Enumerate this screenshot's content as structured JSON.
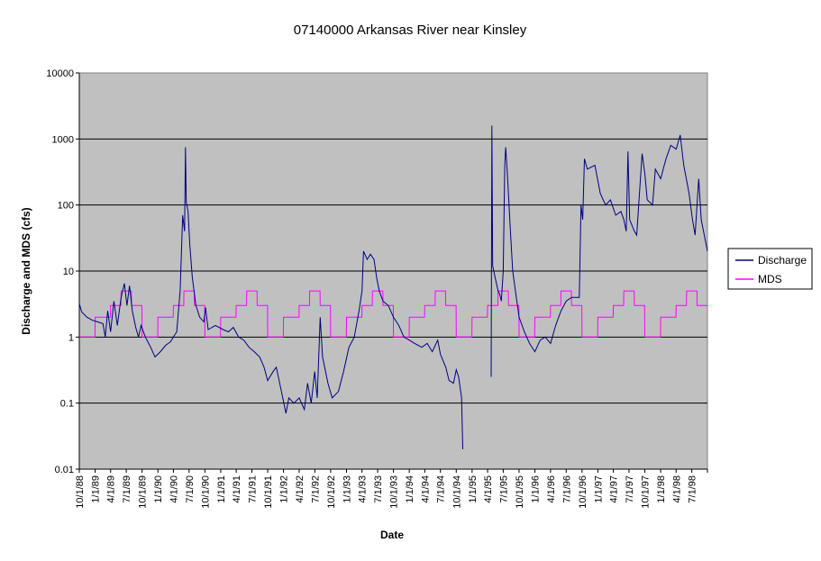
{
  "chart_data": {
    "type": "line",
    "title": "07140000 Arkansas River near Kinsley",
    "xlabel": "Date",
    "ylabel": "Discharge and MDS (cfs)",
    "y_scale": "log",
    "ylim": [
      0.01,
      10000
    ],
    "y_ticks": [
      "0.01",
      "0.1",
      "1",
      "10",
      "100",
      "1000",
      "10000"
    ],
    "xlim": [
      "1988-10-01",
      "1998-09-30"
    ],
    "x_ticks": [
      "10/1/88",
      "1/1/89",
      "4/1/89",
      "7/1/89",
      "10/1/89",
      "1/1/90",
      "4/1/90",
      "7/1/90",
      "10/1/90",
      "1/1/91",
      "4/1/91",
      "7/1/91",
      "10/1/91",
      "1/1/92",
      "4/1/92",
      "7/1/92",
      "10/1/92",
      "1/1/93",
      "4/1/93",
      "7/1/93",
      "10/1/93",
      "1/1/94",
      "4/1/94",
      "7/1/94",
      "10/1/94",
      "1/1/95",
      "4/1/95",
      "7/1/95",
      "10/1/95",
      "1/1/96",
      "4/1/96",
      "7/1/96",
      "10/1/96",
      "1/1/97",
      "4/1/97",
      "7/1/97",
      "10/1/97",
      "1/1/98",
      "4/1/98",
      "7/1/98"
    ],
    "grid": "horizontal major",
    "legend_position": "right",
    "plot_background": "#c0c0c0",
    "series": [
      {
        "name": "Discharge",
        "color": "#000080",
        "points": [
          [
            "1988-10-01",
            3.2
          ],
          [
            "1988-10-15",
            2.4
          ],
          [
            "1988-11-15",
            2.0
          ],
          [
            "1988-12-15",
            1.8
          ],
          [
            "1989-01-15",
            1.7
          ],
          [
            "1989-02-15",
            1.6
          ],
          [
            "1989-03-01",
            1.0
          ],
          [
            "1989-03-15",
            2.5
          ],
          [
            "1989-04-01",
            1.2
          ],
          [
            "1989-04-20",
            3.5
          ],
          [
            "1989-05-10",
            1.5
          ],
          [
            "1989-06-01",
            4.0
          ],
          [
            "1989-06-20",
            6.5
          ],
          [
            "1989-07-05",
            3.0
          ],
          [
            "1989-07-20",
            6.0
          ],
          [
            "1989-08-05",
            2.5
          ],
          [
            "1989-08-25",
            1.4
          ],
          [
            "1989-09-10",
            1.0
          ],
          [
            "1989-09-25",
            1.5
          ],
          [
            "1989-10-20",
            1.0
          ],
          [
            "1989-11-20",
            0.7
          ],
          [
            "1989-12-15",
            0.5
          ],
          [
            "1990-01-15",
            0.6
          ],
          [
            "1990-02-15",
            0.75
          ],
          [
            "1990-03-15",
            0.85
          ],
          [
            "1990-04-01",
            1.0
          ],
          [
            "1990-04-20",
            1.2
          ],
          [
            "1990-05-10",
            5.0
          ],
          [
            "1990-05-25",
            70
          ],
          [
            "1990-06-05",
            40
          ],
          [
            "1990-06-10",
            750
          ],
          [
            "1990-06-15",
            110
          ],
          [
            "1990-06-25",
            80
          ],
          [
            "1990-07-05",
            25
          ],
          [
            "1990-07-20",
            8.0
          ],
          [
            "1990-08-10",
            3.0
          ],
          [
            "1990-09-01",
            2.0
          ],
          [
            "1990-09-25",
            1.7
          ],
          [
            "1990-10-05",
            2.8
          ],
          [
            "1990-10-20",
            1.3
          ],
          [
            "1990-12-01",
            1.5
          ],
          [
            "1991-01-15",
            1.3
          ],
          [
            "1991-02-15",
            1.2
          ],
          [
            "1991-03-15",
            1.4
          ],
          [
            "1991-04-15",
            1.0
          ],
          [
            "1991-05-15",
            0.9
          ],
          [
            "1991-06-15",
            0.7
          ],
          [
            "1991-07-15",
            0.6
          ],
          [
            "1991-08-15",
            0.5
          ],
          [
            "1991-09-10",
            0.35
          ],
          [
            "1991-10-01",
            0.22
          ],
          [
            "1991-11-01",
            0.3
          ],
          [
            "1991-11-20",
            0.35
          ],
          [
            "1991-12-20",
            0.15
          ],
          [
            "1992-01-15",
            0.07
          ],
          [
            "1992-02-01",
            0.12
          ],
          [
            "1992-03-01",
            0.1
          ],
          [
            "1992-04-01",
            0.12
          ],
          [
            "1992-05-01",
            0.08
          ],
          [
            "1992-05-20",
            0.2
          ],
          [
            "1992-06-10",
            0.1
          ],
          [
            "1992-06-30",
            0.3
          ],
          [
            "1992-07-15",
            0.12
          ],
          [
            "1992-08-01",
            2.0
          ],
          [
            "1992-08-15",
            0.5
          ],
          [
            "1992-09-15",
            0.2
          ],
          [
            "1992-10-10",
            0.12
          ],
          [
            "1992-11-15",
            0.15
          ],
          [
            "1992-12-15",
            0.3
          ],
          [
            "1993-01-15",
            0.7
          ],
          [
            "1993-02-15",
            1.0
          ],
          [
            "1993-03-15",
            2.5
          ],
          [
            "1993-04-01",
            5.0
          ],
          [
            "1993-04-10",
            20
          ],
          [
            "1993-05-01",
            15
          ],
          [
            "1993-05-20",
            18
          ],
          [
            "1993-06-10",
            15
          ],
          [
            "1993-06-25",
            8.0
          ],
          [
            "1993-07-10",
            5.0
          ],
          [
            "1993-08-01",
            3.5
          ],
          [
            "1993-09-01",
            3.0
          ],
          [
            "1993-10-01",
            2.0
          ],
          [
            "1993-11-01",
            1.5
          ],
          [
            "1993-12-01",
            1.0
          ],
          [
            "1994-01-01",
            0.9
          ],
          [
            "1994-02-01",
            0.8
          ],
          [
            "1994-03-15",
            0.7
          ],
          [
            "1994-04-15",
            0.8
          ],
          [
            "1994-05-15",
            0.6
          ],
          [
            "1994-06-15",
            0.9
          ],
          [
            "1994-07-01",
            0.55
          ],
          [
            "1994-08-01",
            0.35
          ],
          [
            "1994-08-20",
            0.22
          ],
          [
            "1994-09-15",
            0.2
          ],
          [
            "1994-10-01",
            0.32
          ],
          [
            "1994-10-15",
            0.25
          ],
          [
            "1994-11-01",
            0.12
          ],
          [
            "1994-11-08",
            0.02
          ]
        ],
        "points_segment_2": [
          [
            "1995-04-22",
            0.25
          ],
          [
            "1995-04-26",
            1600
          ],
          [
            "1995-05-01",
            12
          ],
          [
            "1995-05-15",
            8
          ],
          [
            "1995-06-01",
            5.0
          ],
          [
            "1995-06-10",
            4.5
          ],
          [
            "1995-06-20",
            3.5
          ],
          [
            "1995-07-01",
            10
          ],
          [
            "1995-07-10",
            400
          ],
          [
            "1995-07-15",
            750
          ],
          [
            "1995-07-25",
            300
          ],
          [
            "1995-08-10",
            50
          ],
          [
            "1995-08-25",
            10
          ],
          [
            "1995-09-15",
            4.0
          ],
          [
            "1995-10-01",
            2.0
          ],
          [
            "1995-11-01",
            1.2
          ],
          [
            "1995-12-01",
            0.8
          ],
          [
            "1996-01-01",
            0.6
          ],
          [
            "1996-02-01",
            0.9
          ],
          [
            "1996-03-01",
            1.0
          ],
          [
            "1996-04-01",
            0.8
          ],
          [
            "1996-05-01",
            1.5
          ],
          [
            "1996-06-01",
            2.5
          ],
          [
            "1996-07-01",
            3.5
          ],
          [
            "1996-08-01",
            4.0
          ],
          [
            "1996-09-15",
            4.0
          ],
          [
            "1996-09-25",
            100
          ],
          [
            "1996-10-05",
            60
          ],
          [
            "1996-10-15",
            500
          ],
          [
            "1996-11-01",
            350
          ],
          [
            "1996-12-15",
            400
          ],
          [
            "1997-01-15",
            150
          ],
          [
            "1997-02-15",
            100
          ],
          [
            "1997-03-15",
            120
          ],
          [
            "1997-04-15",
            70
          ],
          [
            "1997-05-15",
            80
          ],
          [
            "1997-06-01",
            60
          ],
          [
            "1997-06-15",
            40
          ],
          [
            "1997-06-25",
            650
          ],
          [
            "1997-07-05",
            60
          ],
          [
            "1997-08-01",
            40
          ],
          [
            "1997-08-15",
            35
          ],
          [
            "1997-09-15",
            600
          ],
          [
            "1997-10-01",
            300
          ],
          [
            "1997-10-15",
            120
          ],
          [
            "1997-11-15",
            100
          ],
          [
            "1997-12-01",
            350
          ],
          [
            "1998-01-01",
            250
          ],
          [
            "1998-02-01",
            500
          ],
          [
            "1998-03-01",
            800
          ],
          [
            "1998-04-01",
            700
          ],
          [
            "1998-04-25",
            1150
          ],
          [
            "1998-05-15",
            400
          ],
          [
            "1998-06-15",
            150
          ],
          [
            "1998-07-05",
            60
          ],
          [
            "1998-07-20",
            35
          ],
          [
            "1998-08-10",
            250
          ],
          [
            "1998-08-25",
            60
          ],
          [
            "1998-09-30",
            20
          ]
        ]
      },
      {
        "name": "MDS",
        "color": "#ff00ff",
        "annual_profile": [
          {
            "months": "Oct-Dec",
            "value": 1
          },
          {
            "months": "Jan-Mar",
            "value": 2
          },
          {
            "months": "Apr-May",
            "value": 3
          },
          {
            "months": "Jun-Jul",
            "value": 5
          },
          {
            "months": "Aug-Sep",
            "value": 3
          }
        ],
        "gap": [
          "1994-11-01",
          "1995-01-01"
        ]
      }
    ]
  }
}
